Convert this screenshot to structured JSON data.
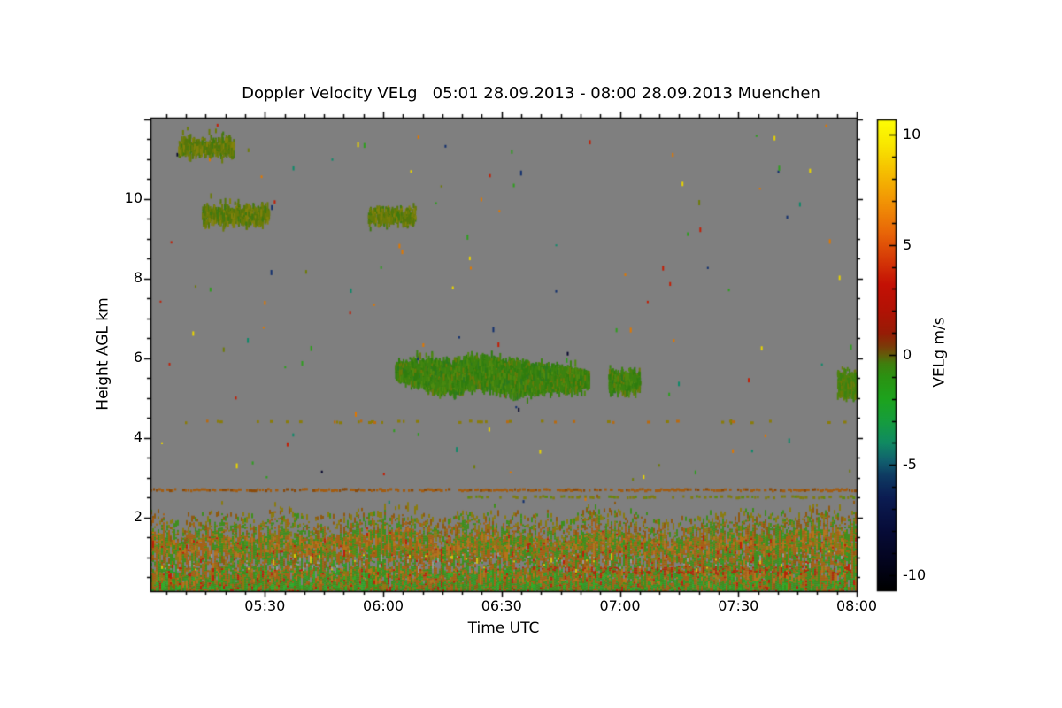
{
  "chart_data": {
    "type": "heatmap",
    "title": "Doppler Velocity VELg   05:01 28.09.2013 - 08:00 28.09.2013 Muenchen",
    "instrument_quantity": "Doppler Velocity VELg",
    "period_start": "05:01 28.09.2013",
    "period_end": "08:00 28.09.2013",
    "station": "Muenchen",
    "missing_data_color": "#7f7f7f",
    "x_axis": {
      "label": "Time UTC",
      "start": "05:01",
      "end": "08:00",
      "major_tick_minutes": 30,
      "minor_tick_minutes": 5,
      "ticks": [
        {
          "time": "05:30",
          "label": "05:30"
        },
        {
          "time": "06:00",
          "label": "06:00"
        },
        {
          "time": "06:30",
          "label": "06:30"
        },
        {
          "time": "07:00",
          "label": "07:00"
        },
        {
          "time": "07:30",
          "label": "07:30"
        },
        {
          "time": "08:00",
          "label": "08:00"
        }
      ]
    },
    "y_axis": {
      "label": "Height AGL km",
      "min": 0.15,
      "max": 12.04,
      "major_step": 2,
      "minor_step": 0.5,
      "ticks": [
        {
          "value": 2,
          "label": "2"
        },
        {
          "value": 4,
          "label": "4"
        },
        {
          "value": 6,
          "label": "6"
        },
        {
          "value": 8,
          "label": "8"
        },
        {
          "value": 10,
          "label": "10"
        }
      ]
    },
    "colorbar": {
      "label": "VELg m/s",
      "min": -10.7,
      "max": 10.7,
      "minor_tick_step": 1,
      "ticks": [
        {
          "value": 10,
          "label": "10"
        },
        {
          "value": 5,
          "label": "5"
        },
        {
          "value": 0,
          "label": "0"
        },
        {
          "value": -5,
          "label": "-5"
        },
        {
          "value": -10,
          "label": "-10"
        }
      ],
      "stops": [
        {
          "v": -10.7,
          "c": "#000000"
        },
        {
          "v": -9.5,
          "c": "#03041c"
        },
        {
          "v": -8.0,
          "c": "#070c38"
        },
        {
          "v": -6.5,
          "c": "#0b1c52"
        },
        {
          "v": -5.5,
          "c": "#0e3a62"
        },
        {
          "v": -4.8,
          "c": "#11606e"
        },
        {
          "v": -4.0,
          "c": "#108a62"
        },
        {
          "v": -3.0,
          "c": "#169d3d"
        },
        {
          "v": -2.0,
          "c": "#1da31d"
        },
        {
          "v": -1.0,
          "c": "#2b9212"
        },
        {
          "v": -0.4,
          "c": "#3f7f0e"
        },
        {
          "v": 0.0,
          "c": "#635c0a"
        },
        {
          "v": 0.4,
          "c": "#7c3a08"
        },
        {
          "v": 1.0,
          "c": "#971c06"
        },
        {
          "v": 2.0,
          "c": "#b11205"
        },
        {
          "v": 3.2,
          "c": "#c41105"
        },
        {
          "v": 4.5,
          "c": "#d83f07"
        },
        {
          "v": 5.5,
          "c": "#e86408"
        },
        {
          "v": 7.0,
          "c": "#f29505"
        },
        {
          "v": 8.5,
          "c": "#f6c400"
        },
        {
          "v": 9.6,
          "c": "#f9e800"
        },
        {
          "v": 10.7,
          "c": "#fdfd05"
        }
      ]
    },
    "features": {
      "clouds": [
        {
          "name": "cirrus-patch-1",
          "t0": "05:08",
          "t1": "05:22",
          "k0": 11.1,
          "k1": 11.62,
          "n": 420,
          "palette": "olive"
        },
        {
          "name": "cirrus-patch-2a",
          "t0": "05:14",
          "t1": "05:31",
          "k0": 9.38,
          "k1": 9.95,
          "n": 480,
          "palette": "olive"
        },
        {
          "name": "cirrus-patch-2b",
          "t0": "05:56",
          "t1": "06:08",
          "k0": 9.4,
          "k1": 9.85,
          "n": 330,
          "palette": "olive"
        },
        {
          "name": "midlevel-cloud-main",
          "t0": "06:03",
          "t1": "06:52",
          "k0": 5.0,
          "k1": 6.2,
          "n": 6200,
          "palette": "green",
          "profile": [
            [
              0,
              5.55,
              5.92
            ],
            [
              0.08,
              5.45,
              6.0
            ],
            [
              0.18,
              5.2,
              6.05
            ],
            [
              0.3,
              5.1,
              6.08
            ],
            [
              0.42,
              5.3,
              6.15
            ],
            [
              0.5,
              5.2,
              6.1
            ],
            [
              0.62,
              5.05,
              6.05
            ],
            [
              0.75,
              5.15,
              5.95
            ],
            [
              0.9,
              5.25,
              5.85
            ],
            [
              1,
              5.35,
              5.7
            ]
          ]
        },
        {
          "name": "midlevel-cloud-2",
          "t0": "06:57",
          "t1": "07:05",
          "k0": 5.15,
          "k1": 5.8,
          "n": 400,
          "palette": "green"
        },
        {
          "name": "midlevel-cloud-3",
          "t0": "07:55",
          "t1": "08:00",
          "k0": 5.05,
          "k1": 5.75,
          "n": 400,
          "palette": "greenolive"
        }
      ],
      "cloud_palettes": {
        "green": [
          [
            "#3c8311",
            45
          ],
          [
            "#2f7d0e",
            20
          ],
          [
            "#4f8a10",
            15
          ],
          [
            "#6b7a0a",
            12
          ],
          [
            "#2c7a1e",
            8
          ]
        ],
        "olive": [
          [
            "#6b7c09",
            40
          ],
          [
            "#55770b",
            25
          ],
          [
            "#82820c",
            20
          ],
          [
            "#3f7a10",
            15
          ]
        ],
        "greenolive": [
          [
            "#4f830f",
            40
          ],
          [
            "#6b7c09",
            30
          ],
          [
            "#3c8311",
            30
          ]
        ]
      },
      "lines": [
        {
          "name": "aerosol-layer-line-2.7km",
          "km": 2.7,
          "t0": "05:01",
          "t1": "08:00",
          "color": "#a35c10",
          "alt": "#8a4a0a",
          "p": 0.78,
          "h": 3
        },
        {
          "name": "aerosol-layer-line-2.5km",
          "km": 2.52,
          "t0": "06:18",
          "t1": "08:00",
          "color": "#7e7c0e",
          "alt": "#5e8a10",
          "p": 0.55,
          "h": 3
        },
        {
          "name": "sparse-layer-line-4.4km",
          "km": 4.41,
          "t0": "05:01",
          "t1": "08:00",
          "color": "#8a7c08",
          "alt": "#b86a10",
          "p": 0.17,
          "h": 3
        }
      ],
      "boundary_layer": {
        "top_km_base": 1.85,
        "top_km_amplitude": 0.22,
        "bottom_km": 0.15,
        "bands": [
          {
            "dmax": 0.16,
            "colors": [
              [
                "skip",
                55
              ],
              [
                "#8a7c10",
                18
              ],
              [
                "#8f5a10",
                15
              ],
              [
                "#3f8f1c",
                12
              ]
            ]
          },
          {
            "dmax": 0.45,
            "colors": [
              [
                "#a86012",
                26
              ],
              [
                "#b97317",
                20
              ],
              [
                "#8a7c10",
                17
              ],
              [
                "#3f8f1c",
                13
              ],
              [
                "#588f12",
                9
              ],
              [
                "skip",
                8
              ],
              [
                "#2f9e2a",
                4
              ],
              [
                "#c01e08",
                3
              ]
            ]
          },
          {
            "dmax": 0.66,
            "colors": [
              [
                "skip",
                20
              ],
              [
                "#a86012",
                19
              ],
              [
                "#8a7c10",
                14
              ],
              [
                "#3f8f1c",
                15
              ],
              [
                "#2f9e2a",
                11
              ],
              [
                "#8f5a10",
                10
              ],
              [
                "#9a9a9a",
                5
              ],
              [
                "#c01e08",
                3
              ],
              [
                "#d8c808",
                2
              ],
              [
                "#b97317",
                1
              ]
            ]
          },
          {
            "dmax": 0.85,
            "colors": [
              [
                "#a86012",
                24
              ],
              [
                "#3f8f1c",
                20
              ],
              [
                "#2f9e2a",
                14
              ],
              [
                "#b97317",
                14
              ],
              [
                "#8a7c10",
                10
              ],
              [
                "#c01e08",
                5
              ],
              [
                "skip",
                6
              ],
              [
                "#2fae25",
                7
              ]
            ]
          },
          {
            "dmax": 1.01,
            "colors": [
              [
                "#3f8f1c",
                24
              ],
              [
                "#2f9e2a",
                24
              ],
              [
                "#2fae25",
                12
              ],
              [
                "#a86012",
                16
              ],
              [
                "#8f5a10",
                9
              ],
              [
                "#8a7c10",
                8
              ],
              [
                "#c01e08",
                7
              ]
            ]
          }
        ]
      },
      "speckles": {
        "count": 125,
        "colors": [
          [
            "#c41e05",
            18
          ],
          [
            "#e07800",
            16
          ],
          [
            "#e8d400",
            12
          ],
          [
            "#2f9e1f",
            16
          ],
          [
            "#0e8a6a",
            10
          ],
          [
            "#12306e",
            8
          ],
          [
            "#0a0a30",
            8
          ],
          [
            "#6f7c08",
            12
          ]
        ]
      }
    },
    "render_seed": 1379
  }
}
